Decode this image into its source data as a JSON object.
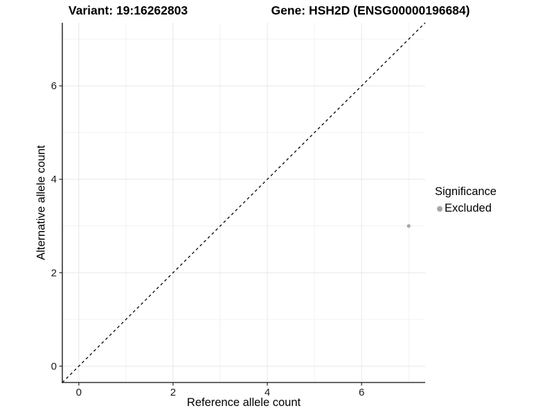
{
  "chart_data": {
    "type": "scatter",
    "title_left": "Variant: 19:16262803",
    "title_right": "Gene: HSH2D (ENSG00000196684)",
    "xlabel": "Reference allele count",
    "ylabel": "Alternative allele count",
    "xlim": [
      -0.35,
      7.35
    ],
    "ylim": [
      -0.35,
      7.35
    ],
    "x_ticks": [
      0,
      2,
      4,
      6
    ],
    "y_ticks": [
      0,
      2,
      4,
      6
    ],
    "x_minor": [
      1,
      3,
      5,
      7
    ],
    "y_minor": [
      1,
      3,
      5,
      7
    ],
    "grid": "major+minor",
    "points": [
      {
        "x": 7,
        "y": 3,
        "series": "Excluded"
      }
    ],
    "reference_line": {
      "style": "dashed",
      "equation": "y = x",
      "color": "#000000"
    },
    "legend": {
      "title": "Significance",
      "position": "right",
      "entries": [
        {
          "label": "Excluded",
          "color": "#a6a6a6"
        }
      ]
    },
    "colors": {
      "background": "#ffffff",
      "axis_line": "#333333",
      "grid_major": "#e7e7e7",
      "grid_minor": "#f2f2f2",
      "tick_text": "#1a1a1a"
    }
  }
}
